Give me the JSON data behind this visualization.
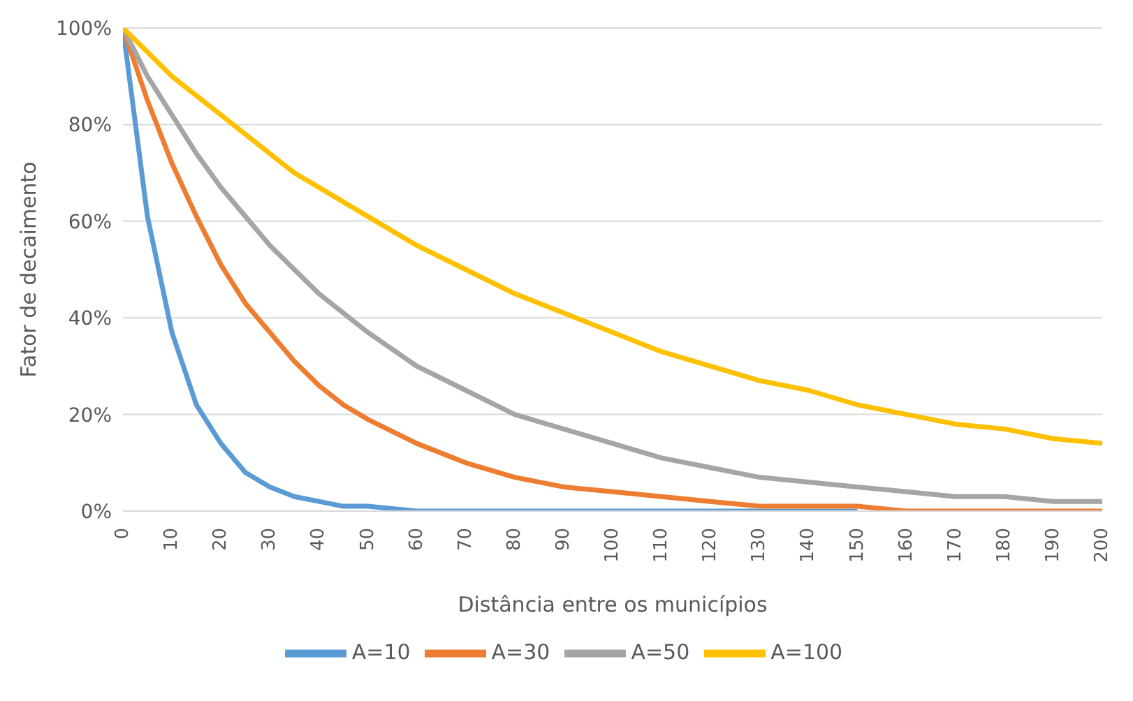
{
  "chart_data": {
    "type": "line",
    "xlabel": "Distância entre os municípios",
    "ylabel": "Fator de decaimento",
    "x": [
      0,
      5,
      10,
      15,
      20,
      25,
      30,
      35,
      40,
      45,
      50,
      60,
      70,
      80,
      90,
      100,
      110,
      120,
      130,
      140,
      150,
      160,
      170,
      180,
      190,
      200
    ],
    "series": [
      {
        "name": "A=10",
        "color": "#5b9bd5",
        "values": [
          100,
          61,
          37,
          22,
          14,
          8,
          5,
          3,
          2,
          1,
          1,
          0,
          0,
          0,
          0,
          0,
          0,
          0,
          0,
          0,
          0,
          null,
          null,
          null,
          null,
          null
        ]
      },
      {
        "name": "A=30",
        "color": "#ed7d31",
        "values": [
          100,
          85,
          72,
          61,
          51,
          43,
          37,
          31,
          26,
          22,
          19,
          14,
          10,
          7,
          5,
          4,
          3,
          2,
          1,
          1,
          1,
          0,
          0,
          0,
          0,
          0
        ]
      },
      {
        "name": "A=50",
        "color": "#a5a5a5",
        "values": [
          100,
          90,
          82,
          74,
          67,
          61,
          55,
          50,
          45,
          41,
          37,
          30,
          25,
          20,
          17,
          14,
          11,
          9,
          7,
          6,
          5,
          4,
          3,
          3,
          2,
          2
        ]
      },
      {
        "name": "A=100",
        "color": "#ffc000",
        "values": [
          100,
          95,
          90,
          86,
          82,
          78,
          74,
          70,
          67,
          64,
          61,
          55,
          50,
          45,
          41,
          37,
          33,
          30,
          27,
          25,
          22,
          20,
          18,
          17,
          15,
          14
        ]
      }
    ],
    "xlim": [
      0,
      200
    ],
    "xticks": [
      0,
      10,
      20,
      30,
      40,
      50,
      60,
      70,
      80,
      90,
      100,
      110,
      120,
      130,
      140,
      150,
      160,
      170,
      180,
      190,
      200
    ],
    "ylim": [
      0,
      100
    ],
    "yticks": [
      {
        "value": 0,
        "label": "0%"
      },
      {
        "value": 20,
        "label": "20%"
      },
      {
        "value": 40,
        "label": "40%"
      },
      {
        "value": 60,
        "label": "60%"
      },
      {
        "value": 80,
        "label": "80%"
      },
      {
        "value": 100,
        "label": "100%"
      }
    ],
    "grid": "y",
    "legend": "bottom",
    "marker": "none",
    "line_style": "solid"
  }
}
